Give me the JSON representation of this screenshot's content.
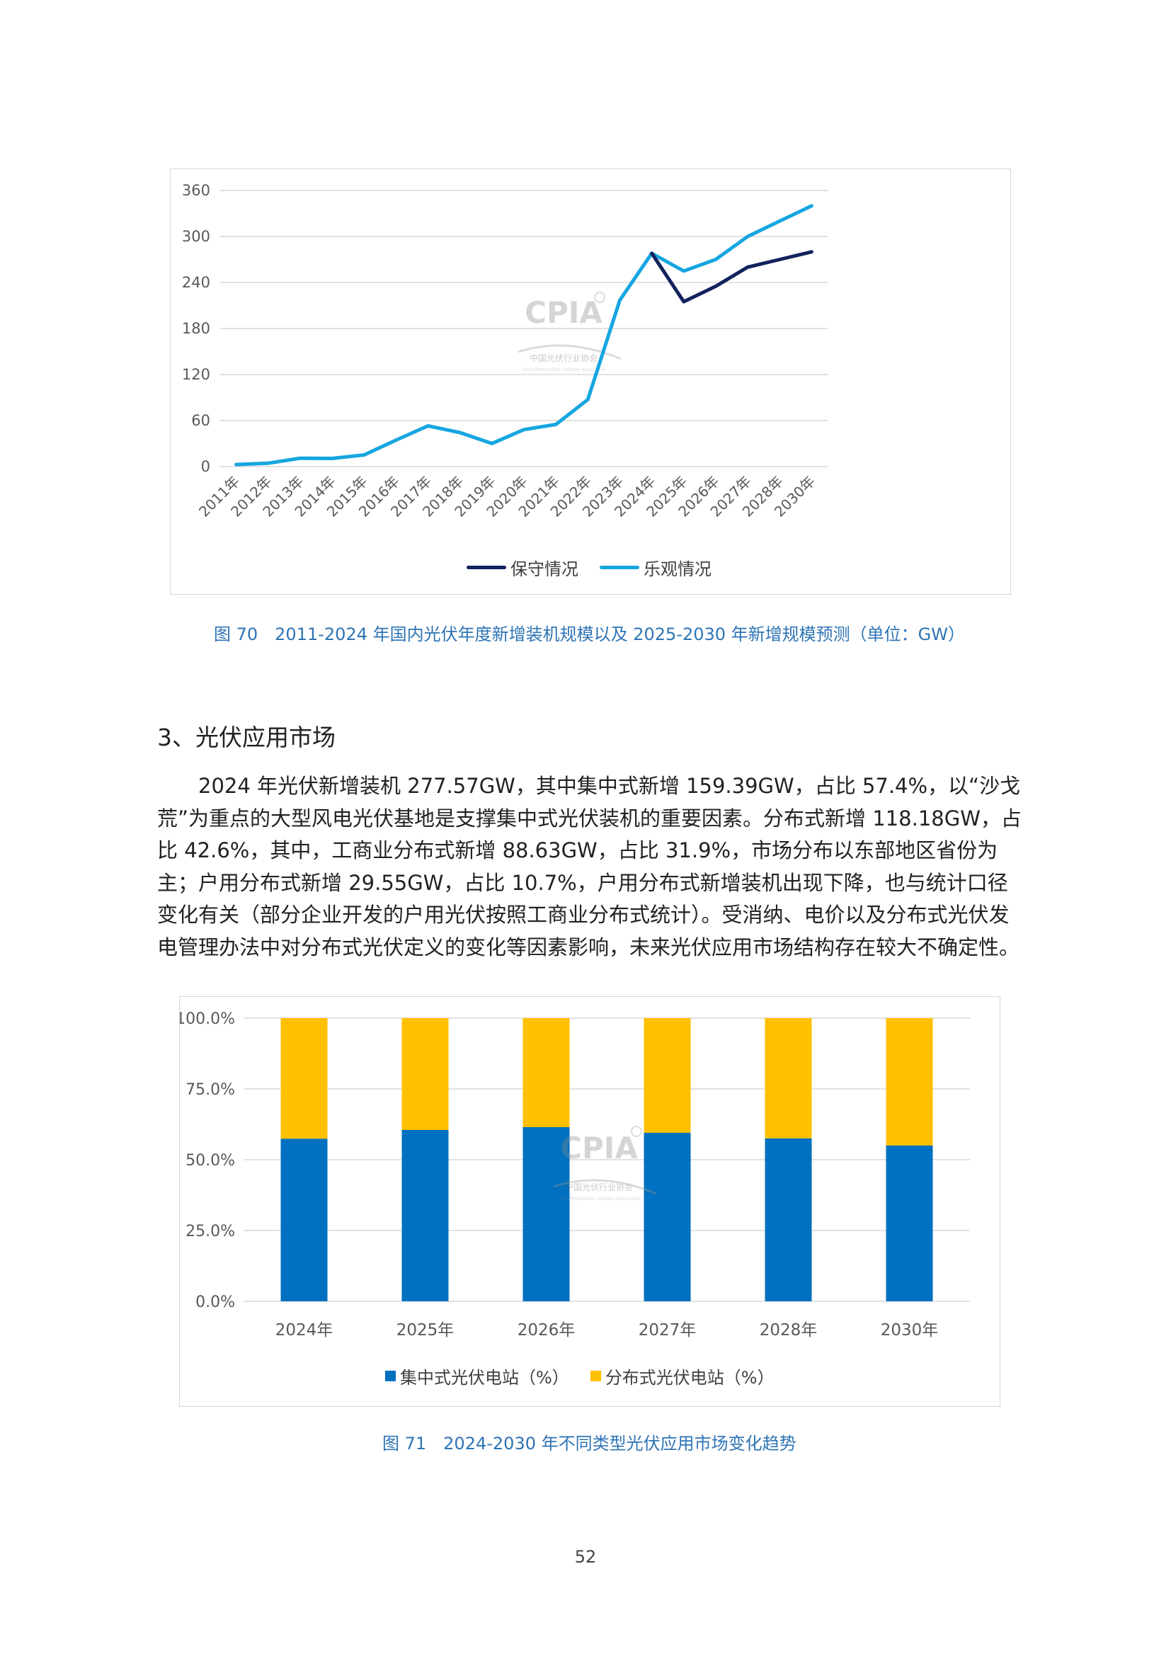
{
  "figure70": {
    "caption": "图 70　2011-2024 年国内光伏年度新增装机规模以及 2025-2030 年新增规模预测（单位：GW）",
    "watermark": {
      "logo": "CPIA",
      "line1": "中国光伏行业协会",
      "line2": "China Photovoltaic Industry Association"
    }
  },
  "figure71": {
    "caption": "图 71　2024-2030 年不同类型光伏应用市场变化趋势",
    "watermark": {
      "logo": "CPIA",
      "line1": "中国光伏行业协会",
      "line2": "China Photovoltaic Industry Association"
    }
  },
  "section": {
    "heading": "3、光伏应用市场",
    "paragraph": "2024 年光伏新增装机 277.57GW，其中集中式新增 159.39GW，占比 57.4%，以“沙戈荒”为重点的大型风电光伏基地是支撑集中式光伏装机的重要因素。分布式新增 118.18GW，占比 42.6%，其中，工商业分布式新增 88.63GW，占比 31.9%，市场分布以东部地区省份为主；户用分布式新增 29.55GW，占比 10.7%，户用分布式新增装机出现下降，也与统计口径变化有关（部分企业开发的户用光伏按照工商业分布式统计）。受消纳、电价以及分布式光伏发电管理办法中对分布式光伏定义的变化等因素影响，未来光伏应用市场结构存在较大不确定性。"
  },
  "page_number": "52",
  "chart_data": [
    {
      "type": "line",
      "title": "",
      "xlabel": "",
      "ylabel": "",
      "ylim": [
        0,
        360
      ],
      "yticks": [
        "0",
        "60",
        "120",
        "180",
        "240",
        "300",
        "360"
      ],
      "grid": true,
      "legend_position": "bottom",
      "categories": [
        "2011年",
        "2012年",
        "2013年",
        "2014年",
        "2015年",
        "2016年",
        "2017年",
        "2018年",
        "2019年",
        "2020年",
        "2021年",
        "2022年",
        "2023年",
        "2024年",
        "2025年",
        "2026年",
        "2027年",
        "2028年",
        "2030年"
      ],
      "series": [
        {
          "name": "保守情况",
          "color": "#12225c",
          "values": [
            null,
            null,
            null,
            null,
            null,
            null,
            null,
            null,
            null,
            null,
            null,
            null,
            null,
            278,
            215,
            235,
            260,
            270,
            280
          ]
        },
        {
          "name": "乐观情况",
          "color": "#16a6e0",
          "values": [
            2.7,
            4.3,
            10.9,
            10.6,
            15.1,
            34.5,
            53.1,
            44.3,
            30.1,
            48.2,
            54.9,
            87.4,
            216.9,
            278,
            255,
            270,
            300,
            320,
            340
          ]
        }
      ]
    },
    {
      "type": "bar",
      "stacked": true,
      "title": "",
      "xlabel": "",
      "ylabel": "",
      "ylim": [
        0,
        100
      ],
      "yticks": [
        "0.0%",
        "25.0%",
        "50.0%",
        "75.0%",
        "100.0%"
      ],
      "grid": true,
      "legend_position": "bottom",
      "categories": [
        "2024年",
        "2025年",
        "2026年",
        "2027年",
        "2028年",
        "2030年"
      ],
      "series": [
        {
          "name": "集中式光伏电站（%）",
          "color": "#0070c0",
          "values": [
            57.4,
            60.5,
            61.5,
            59.5,
            57.5,
            55.0
          ]
        },
        {
          "name": "分布式光伏电站（%）",
          "color": "#ffc000",
          "values": [
            42.6,
            39.5,
            38.5,
            40.5,
            42.5,
            45.0
          ]
        }
      ]
    }
  ]
}
